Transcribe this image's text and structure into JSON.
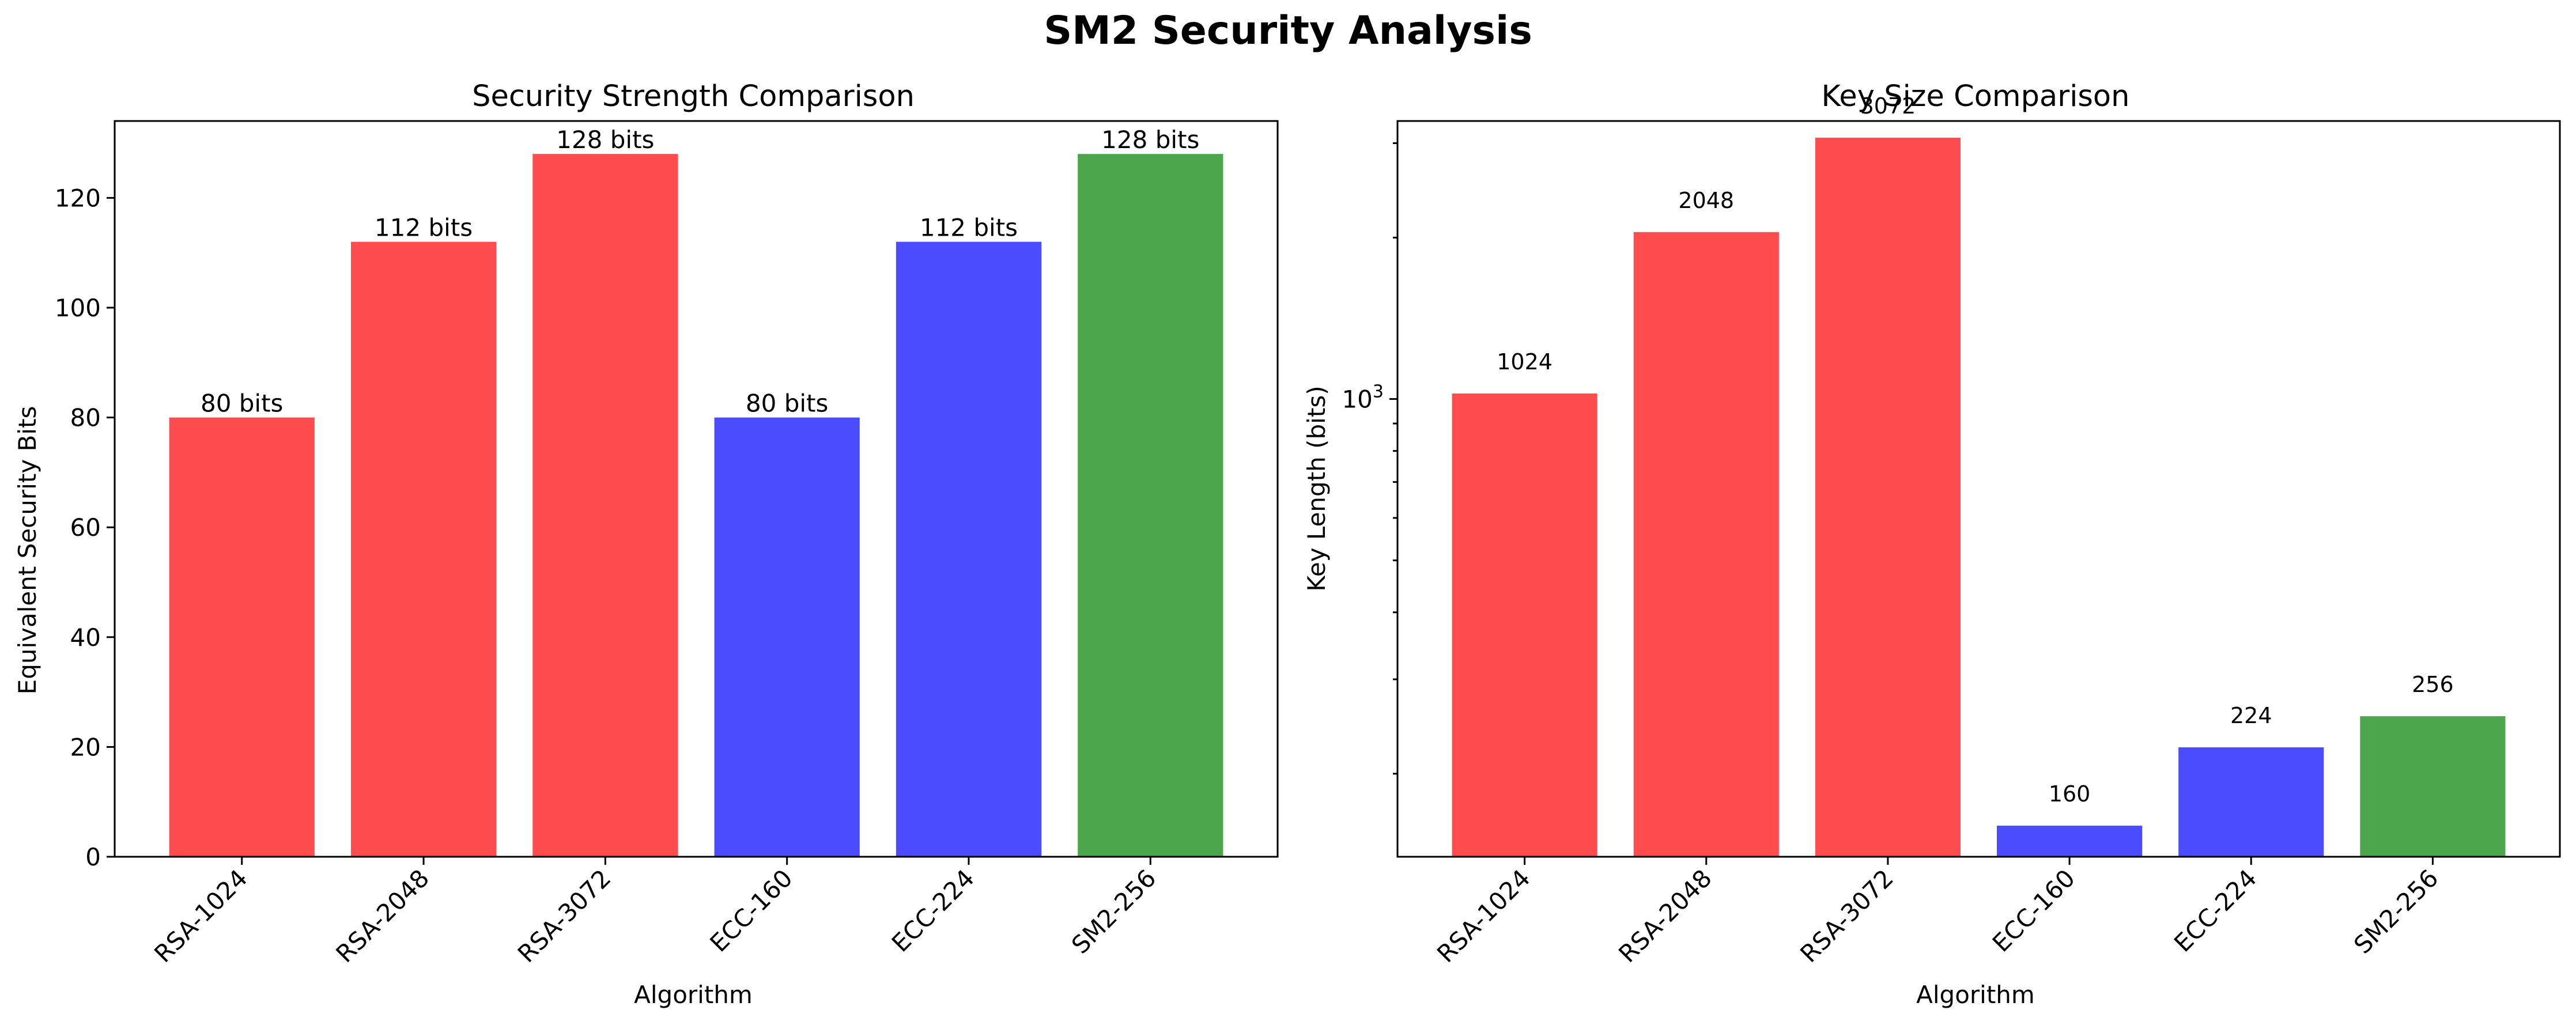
{
  "figure": {
    "title": "SM2 Security Analysis"
  },
  "chart_data": [
    {
      "type": "bar",
      "title": "Security Strength Comparison",
      "xlabel": "Algorithm",
      "ylabel": "Equivalent Security Bits",
      "categories": [
        "RSA-1024",
        "RSA-2048",
        "RSA-3072",
        "ECC-160",
        "ECC-224",
        "SM2-256"
      ],
      "values": [
        80,
        112,
        128,
        80,
        112,
        128
      ],
      "value_labels": [
        "80 bits",
        "112 bits",
        "128 bits",
        "80 bits",
        "112 bits",
        "128 bits"
      ],
      "colors": [
        "#ff4d4f",
        "#ff4d4f",
        "#ff4d4f",
        "#4b4bff",
        "#4b4bff",
        "#4ca64c"
      ],
      "ylim": [
        0,
        134
      ],
      "yscale": "linear",
      "yticks": [
        0,
        20,
        40,
        60,
        80,
        100,
        120
      ],
      "grid": false,
      "legend": "none"
    },
    {
      "type": "bar",
      "title": "Key Size Comparison",
      "xlabel": "Algorithm",
      "ylabel": "Key Length (bits)",
      "categories": [
        "RSA-1024",
        "RSA-2048",
        "RSA-3072",
        "ECC-160",
        "ECC-224",
        "SM2-256"
      ],
      "values": [
        1024,
        2048,
        3072,
        160,
        224,
        256
      ],
      "value_labels": [
        "1024",
        "2048",
        "3072",
        "160",
        "224",
        "256"
      ],
      "colors": [
        "#ff4d4f",
        "#ff4d4f",
        "#ff4d4f",
        "#4b4bff",
        "#4b4bff",
        "#4ca64c"
      ],
      "ylim": [
        140,
        3300
      ],
      "yscale": "log",
      "yticks_major": [
        {
          "value": 1000,
          "label_base": "10",
          "label_exp": "3"
        }
      ],
      "yticks_minor": [
        200,
        300,
        400,
        500,
        600,
        700,
        800,
        900,
        2000,
        3000
      ],
      "grid": false,
      "legend": "none"
    }
  ]
}
